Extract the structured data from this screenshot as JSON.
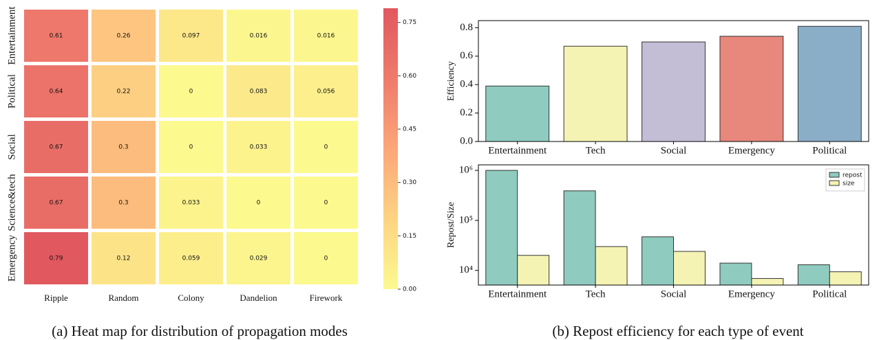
{
  "captions": [
    "(a)  Heat map for distribution of propagation modes",
    "(b)  Repost efficiency for each type of event"
  ],
  "chart_data": [
    {
      "type": "heatmap",
      "rows": [
        "Entertainment",
        "Political",
        "Social",
        "Science&tech",
        "Emergency"
      ],
      "columns": [
        "Ripple",
        "Random",
        "Colony",
        "Dandelion",
        "Firework"
      ],
      "values": [
        [
          0.61,
          0.26,
          0.097,
          0.016,
          0.016
        ],
        [
          0.64,
          0.22,
          0,
          0.083,
          0.056
        ],
        [
          0.67,
          0.3,
          0,
          0.033,
          0
        ],
        [
          0.67,
          0.3,
          0.033,
          0,
          0
        ],
        [
          0.79,
          0.12,
          0.059,
          0.029,
          0
        ]
      ],
      "value_labels": [
        [
          "0.61",
          "0.26",
          "0.097",
          "0.016",
          "0.016"
        ],
        [
          "0.64",
          "0.22",
          "0",
          "0.083",
          "0.056"
        ],
        [
          "0.67",
          "0.3",
          "0",
          "0.033",
          "0"
        ],
        [
          "0.67",
          "0.3",
          "0.033",
          "0",
          "0"
        ],
        [
          "0.79",
          "0.12",
          "0.059",
          "0.029",
          "0"
        ]
      ],
      "colormap": [
        "#fcf98f",
        "#fdd483",
        "#fca678",
        "#ee7b6c",
        "#e1585f"
      ],
      "clim": [
        0,
        0.79
      ],
      "cticks": [
        {
          "value": 0,
          "label": "0.00"
        },
        0.15,
        {
          "value": 0.3,
          "label": "0.30"
        },
        0.45,
        {
          "value": 0.6,
          "label": "0.60"
        },
        0.75
      ]
    },
    {
      "type": "bar",
      "categories": [
        "Entertainment",
        "Tech",
        "Social",
        "Emergency",
        "Political"
      ],
      "values": [
        0.39,
        0.67,
        0.7,
        0.74,
        0.81
      ],
      "colors": [
        "#8fcbbf",
        "#f5f3b4",
        "#c3bdd6",
        "#e8877c",
        "#8aaec8"
      ],
      "ylabel": "Efficiency",
      "ylim": [
        0,
        0.85
      ],
      "yticks": [
        {
          "value": 0,
          "label": "0.0"
        },
        0.2,
        0.4,
        0.6,
        0.8
      ]
    },
    {
      "type": "bar",
      "categories": [
        "Entertainment",
        "Tech",
        "Social",
        "Emergency",
        "Political"
      ],
      "series": [
        {
          "name": "repost",
          "color": "#8fcbbf",
          "values": [
            1000000,
            390000,
            47000,
            14000,
            13000
          ]
        },
        {
          "name": "size",
          "color": "#f5f3b4",
          "values": [
            20000,
            30000,
            24000,
            6900,
            9400
          ]
        }
      ],
      "ylabel": "Repost/Size",
      "log_scale": true,
      "ylim": [
        5100,
        1290000
      ],
      "yticks": [
        {
          "value": 10000,
          "label": "10⁴"
        },
        {
          "value": 100000,
          "label": "10⁵"
        },
        {
          "value": 1000000,
          "label": "10⁶"
        }
      ],
      "legend": "upper right"
    }
  ]
}
